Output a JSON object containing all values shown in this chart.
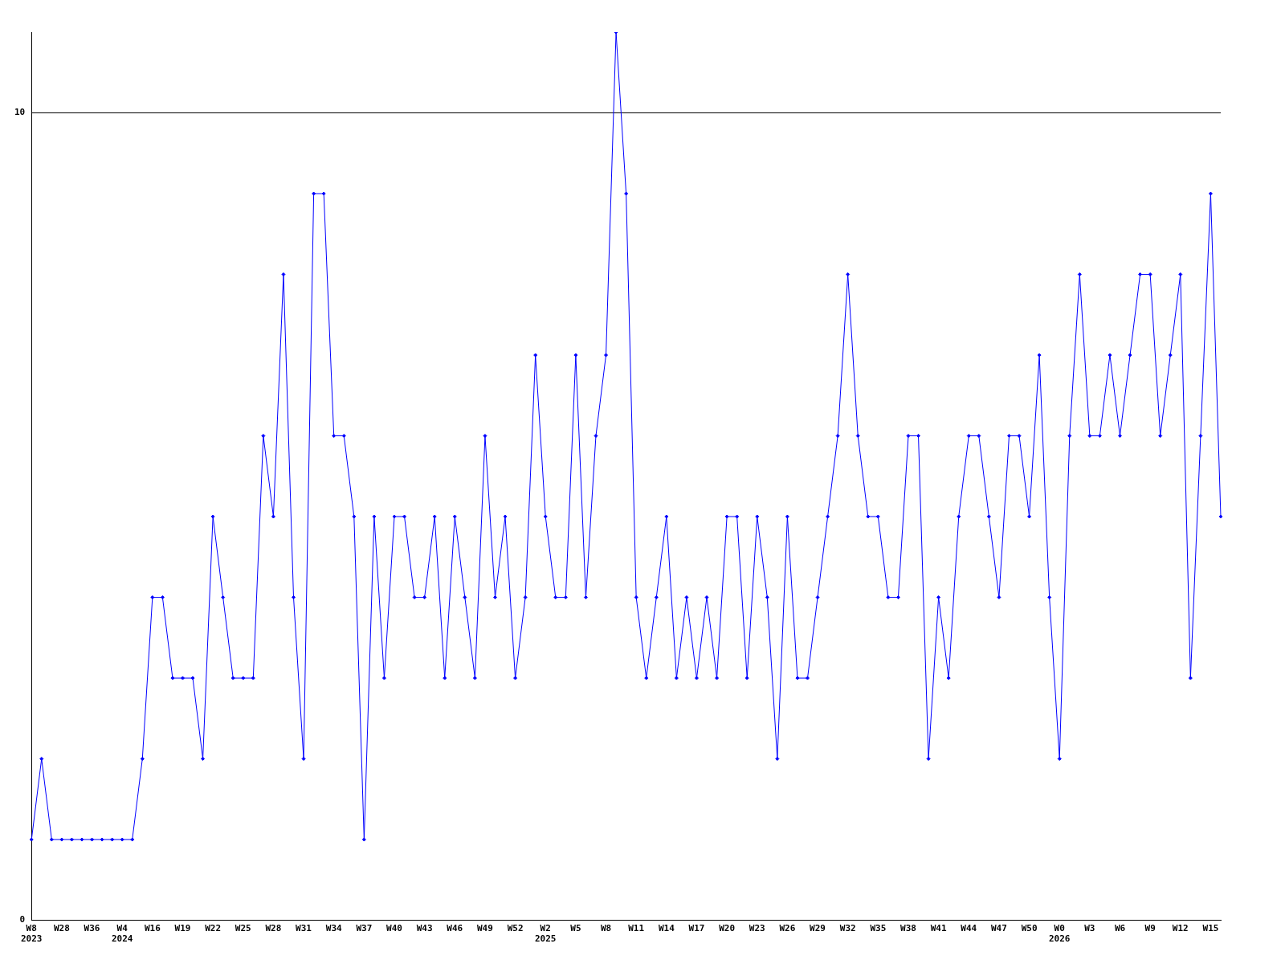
{
  "chart_data": {
    "type": "line",
    "categories": [
      "W8\n2023",
      null,
      null,
      "W28",
      null,
      null,
      "W36",
      null,
      null,
      "W4\n2024",
      null,
      null,
      "W16",
      null,
      null,
      "W19",
      null,
      null,
      "W22",
      null,
      null,
      "W25",
      null,
      null,
      "W28",
      null,
      null,
      "W31",
      null,
      null,
      "W34",
      null,
      null,
      "W37",
      null,
      null,
      "W40",
      null,
      null,
      "W43",
      null,
      null,
      "W46",
      null,
      null,
      "W49",
      null,
      null,
      "W52",
      null,
      null,
      "W2\n2025",
      null,
      null,
      "W5",
      null,
      null,
      "W8",
      null,
      null,
      "W11",
      null,
      null,
      "W14",
      null,
      null,
      "W17",
      null,
      null,
      "W20",
      null,
      null,
      "W23",
      null,
      null,
      "W26",
      null,
      null,
      "W29",
      null,
      null,
      "W32",
      null,
      null,
      "W35",
      null,
      null,
      "W38",
      null,
      null,
      "W41",
      null,
      null,
      "W44",
      null,
      null,
      "W47",
      null,
      null,
      "W50",
      null,
      null,
      "W0\n2026",
      null,
      null,
      "W3",
      null,
      null,
      "W6",
      null,
      null,
      "W9",
      null,
      null,
      "W12",
      null,
      null,
      "W15",
      null
    ],
    "series": [
      {
        "color": "#0000ff",
        "values": [
          1,
          2,
          1,
          1,
          1,
          1,
          1,
          1,
          1,
          1,
          1,
          2,
          4,
          4,
          3,
          3,
          3,
          2,
          5,
          4,
          3,
          3,
          3,
          6,
          5,
          8,
          4,
          2,
          9,
          9,
          6,
          6,
          5,
          1,
          5,
          3,
          5,
          5,
          4,
          4,
          5,
          3,
          5,
          4,
          3,
          6,
          4,
          5,
          3,
          4,
          7,
          5,
          4,
          4,
          7,
          4,
          6,
          7,
          11,
          9,
          4,
          3,
          4,
          5,
          3,
          4,
          3,
          4,
          3,
          5,
          5,
          3,
          5,
          4,
          2,
          5,
          3,
          3,
          4,
          5,
          6,
          8,
          6,
          5,
          5,
          4,
          4,
          6,
          6,
          2,
          4,
          3,
          5,
          6,
          6,
          5,
          4,
          6,
          6,
          5,
          7,
          4,
          2,
          6,
          8,
          6,
          6,
          7,
          6,
          7,
          8,
          8,
          6,
          7,
          8,
          3,
          6,
          9,
          5
        ]
      }
    ],
    "ylim": [
      0,
      11
    ],
    "yticks": [
      0,
      10
    ],
    "grid": "y",
    "legend": false,
    "marker": "diamond",
    "line_style": "solid"
  }
}
